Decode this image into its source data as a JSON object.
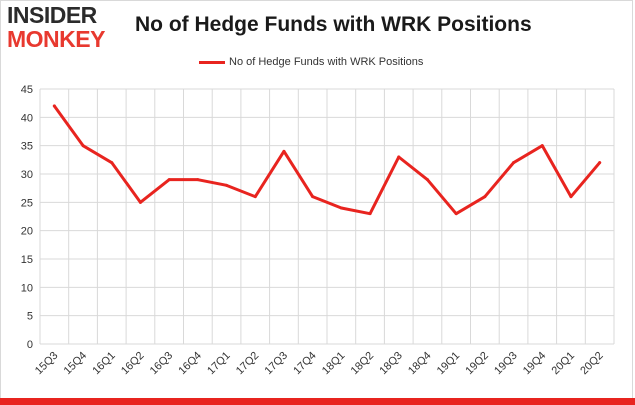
{
  "logo": {
    "line1": "INSIDER",
    "line2": "MONKEY"
  },
  "colors": {
    "series": "#e8241f",
    "grid": "#d9d9d9",
    "accent_bar": "#e8241f"
  },
  "chart_data": {
    "type": "line",
    "title": "No of Hedge Funds with WRK Positions",
    "xlabel": "",
    "ylabel": "",
    "ylim": [
      0,
      45
    ],
    "yticks": [
      0,
      5,
      10,
      15,
      20,
      25,
      30,
      35,
      40,
      45
    ],
    "grid": true,
    "legend_position": "top-center",
    "categories": [
      "15Q3",
      "15Q4",
      "16Q1",
      "16Q2",
      "16Q3",
      "16Q4",
      "17Q1",
      "17Q2",
      "17Q3",
      "17Q4",
      "18Q1",
      "18Q2",
      "18Q3",
      "18Q4",
      "19Q1",
      "19Q2",
      "19Q3",
      "19Q4",
      "20Q1",
      "20Q2"
    ],
    "series": [
      {
        "name": "No of Hedge Funds with WRK Positions",
        "values": [
          42,
          35,
          32,
          25,
          29,
          29,
          28,
          26,
          34,
          26,
          24,
          23,
          33,
          29,
          23,
          26,
          32,
          35,
          26,
          32
        ]
      }
    ]
  }
}
